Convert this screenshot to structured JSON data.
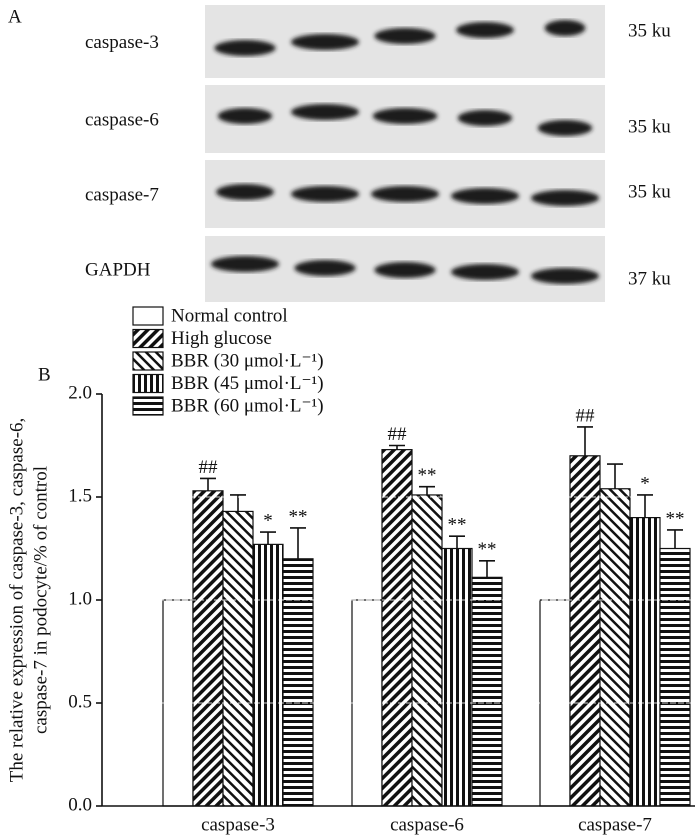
{
  "blot": {
    "panel_label": "A",
    "rows": [
      {
        "label": "caspase-3",
        "size": "35 ku"
      },
      {
        "label": "caspase-6",
        "size": "35 ku"
      },
      {
        "label": "caspase-7",
        "size": "35 ku"
      },
      {
        "label": "GAPDH",
        "size": "37 ku"
      }
    ]
  },
  "chart_data": {
    "type": "bar",
    "panel_label": "B",
    "ylabel": [
      "The relative expression of caspase-3, caspase-6,",
      "caspase-7 in podocyte/% of control"
    ],
    "categories": [
      "caspase-3",
      "caspase-6",
      "caspase-7"
    ],
    "series": [
      {
        "name": "Normal control",
        "color": "#ffffff",
        "hatch": "none",
        "values": [
          1.0,
          1.0,
          1.0
        ],
        "errors": [
          null,
          null,
          null
        ],
        "annotations": [
          null,
          null,
          null
        ]
      },
      {
        "name": "High glucose",
        "color": "#111111",
        "hatch": "forward",
        "values": [
          1.53,
          1.73,
          1.7
        ],
        "errors": [
          0.06,
          0.02,
          0.14
        ],
        "annotations": [
          "##",
          "##",
          "##"
        ]
      },
      {
        "name": "BBR (30 μmol·L⁻¹)",
        "color": "#111111",
        "hatch": "back",
        "values": [
          1.43,
          1.51,
          1.54
        ],
        "errors": [
          0.08,
          0.04,
          0.12
        ],
        "annotations": [
          null,
          "**",
          null
        ]
      },
      {
        "name": "BBR (45 μmol·L⁻¹)",
        "color": "#111111",
        "hatch": "vertical",
        "values": [
          1.27,
          1.25,
          1.4
        ],
        "errors": [
          0.06,
          0.06,
          0.11
        ],
        "annotations": [
          "*",
          "**",
          "*"
        ]
      },
      {
        "name": "BBR (60 μmol·L⁻¹)",
        "color": "#111111",
        "hatch": "horizontal",
        "values": [
          1.2,
          1.11,
          1.25
        ],
        "errors": [
          0.15,
          0.08,
          0.09
        ],
        "annotations": [
          "**",
          "**",
          "**"
        ]
      }
    ],
    "ylim": [
      0,
      2.0
    ],
    "yticks": [
      {
        "value": 0,
        "label": "0.0"
      },
      {
        "value": 0.5,
        "label": "0.5"
      },
      {
        "value": 1.0,
        "label": "1.0"
      },
      {
        "value": 1.5,
        "label": "1.5"
      },
      {
        "value": 2.0,
        "label": "2.0"
      }
    ],
    "grid": true,
    "legend": "upper left"
  }
}
